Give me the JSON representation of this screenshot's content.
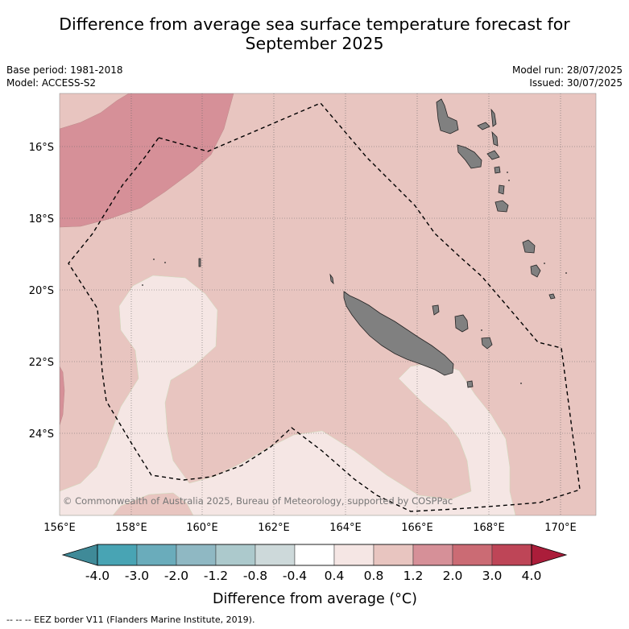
{
  "title_line1": "Difference from average sea surface temperature forecast for",
  "title_line2": "September 2025",
  "meta": {
    "base_period": "Base period: 1981-2018",
    "model": "Model: ACCESS-S2",
    "model_run": "Model run: 28/07/2025",
    "issued": "Issued: 30/07/2025"
  },
  "map": {
    "lat_labels": [
      "16°S",
      "18°S",
      "20°S",
      "22°S",
      "24°S"
    ],
    "lon_labels": [
      "156°E",
      "158°E",
      "160°E",
      "162°E",
      "164°E",
      "166°E",
      "168°E",
      "170°E"
    ],
    "copyright": "© Commonwealth of Australia 2025, Bureau of Meteorology, supported by COSPPac"
  },
  "colorbar": {
    "ticks": [
      "-4.0",
      "-3.0",
      "-2.0",
      "-1.2",
      "-0.8",
      "-0.4",
      "0.4",
      "0.8",
      "1.2",
      "2.0",
      "3.0",
      "4.0"
    ],
    "colors": [
      "#48a4b4",
      "#6aacbb",
      "#8fb8c3",
      "#acc9cc",
      "#cdd9da",
      "#ffffff",
      "#f5e6e4",
      "#e8c5c0",
      "#d69098",
      "#cb6b74",
      "#be4557"
    ],
    "under_color": "#3f8a98",
    "over_color": "#ab1d3a",
    "label": "Difference from average (°C)"
  },
  "footnote": "--  --  -- EEZ border V11 (Flanders Marine Institute, 2019)."
}
